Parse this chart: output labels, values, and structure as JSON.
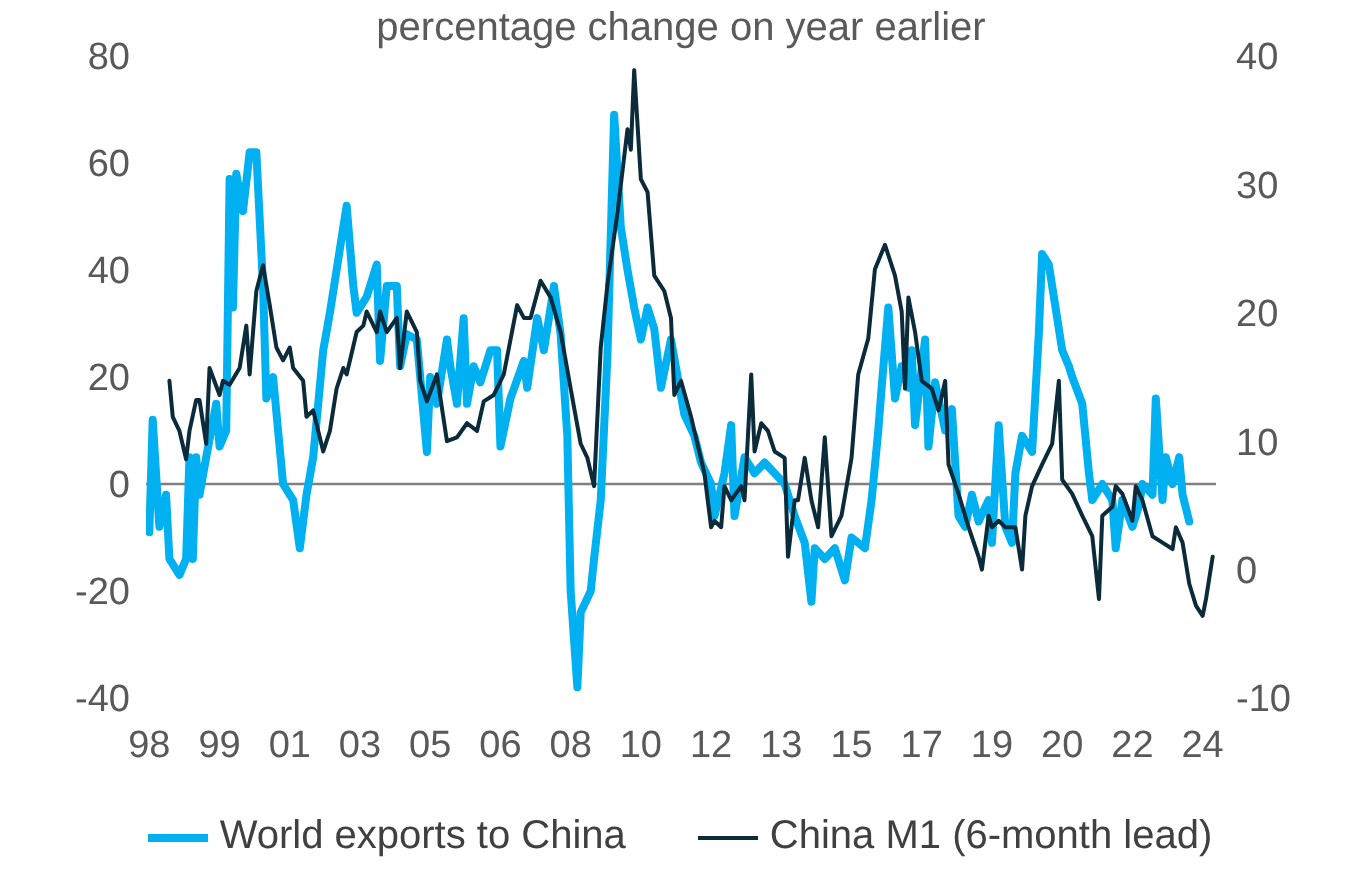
{
  "chart_data": {
    "type": "line",
    "title": "percentage change on year earlier",
    "legend": "bottom",
    "grid": false,
    "xlim": [
      "1997-12",
      "2024-08"
    ],
    "xticks": [
      {
        "value": "1998-01",
        "label": "98"
      },
      {
        "value": "1999-10",
        "label": "99"
      },
      {
        "value": "2001-07",
        "label": "01"
      },
      {
        "value": "2003-04",
        "label": "03"
      },
      {
        "value": "2005-01",
        "label": "05"
      },
      {
        "value": "2006-10",
        "label": "06"
      },
      {
        "value": "2008-07",
        "label": "08"
      },
      {
        "value": "2010-04",
        "label": "10"
      },
      {
        "value": "2012-01",
        "label": "12"
      },
      {
        "value": "2013-10",
        "label": "13"
      },
      {
        "value": "2015-07",
        "label": "15"
      },
      {
        "value": "2017-04",
        "label": "17"
      },
      {
        "value": "2019-01",
        "label": "19"
      },
      {
        "value": "2020-10",
        "label": "20"
      },
      {
        "value": "2022-07",
        "label": "22"
      },
      {
        "value": "2024-04",
        "label": "24"
      }
    ],
    "ylim": [
      -40,
      80
    ],
    "yticks": [
      -40,
      -20,
      0,
      20,
      40,
      60,
      80
    ],
    "y2lim": [
      -10,
      40
    ],
    "y2ticks": [
      -10,
      0,
      10,
      20,
      30,
      40
    ],
    "ref_lines": [
      {
        "axis": "y",
        "value": 0,
        "color": "#808080"
      }
    ],
    "series": [
      {
        "name": "World exports to China",
        "color": "#00b0f0",
        "x": [
          "1998-01",
          "1998-02",
          "1998-04",
          "1998-06",
          "1998-07",
          "1998-10",
          "1998-12",
          "1999-01",
          "1999-02",
          "1999-03",
          "1999-04",
          "1999-06",
          "1999-09",
          "1999-10",
          "1999-12",
          "2000-01",
          "2000-02",
          "2000-03",
          "2000-05",
          "2000-07",
          "2000-09",
          "2000-11",
          "2000-12",
          "2001-02",
          "2001-05",
          "2001-08",
          "2001-10",
          "2001-12",
          "2002-02",
          "2002-05",
          "2002-07",
          "2002-09",
          "2002-12",
          "2003-02",
          "2003-03",
          "2003-06",
          "2003-09",
          "2003-10",
          "2003-12",
          "2004-03",
          "2004-04",
          "2004-06",
          "2004-09",
          "2004-12",
          "2005-01",
          "2005-03",
          "2005-06",
          "2005-07",
          "2005-09",
          "2005-11",
          "2005-12",
          "2006-02",
          "2006-04",
          "2006-07",
          "2006-09",
          "2006-10",
          "2007-01",
          "2007-05",
          "2007-06",
          "2007-09",
          "2007-11",
          "2008-02",
          "2008-04",
          "2008-06",
          "2008-07",
          "2008-09",
          "2008-10",
          "2009-01",
          "2009-02",
          "2009-04",
          "2009-06",
          "2009-08",
          "2009-10",
          "2009-12",
          "2010-02",
          "2010-04",
          "2010-06",
          "2010-08",
          "2010-10",
          "2011-01",
          "2011-03",
          "2011-05",
          "2011-08",
          "2011-10",
          "2012-01",
          "2012-02",
          "2012-05",
          "2012-07",
          "2012-08",
          "2012-11",
          "2013-02",
          "2013-05",
          "2013-08",
          "2013-11",
          "2014-02",
          "2014-05",
          "2014-07",
          "2014-08",
          "2014-11",
          "2015-02",
          "2015-05",
          "2015-07",
          "2015-11",
          "2016-01",
          "2016-03",
          "2016-04",
          "2016-06",
          "2016-08",
          "2016-10",
          "2016-12",
          "2017-01",
          "2017-02",
          "2017-05",
          "2017-06",
          "2017-08",
          "2017-11",
          "2018-01",
          "2018-03",
          "2018-05",
          "2018-07",
          "2018-09",
          "2018-12",
          "2019-01",
          "2019-03",
          "2019-05",
          "2019-07",
          "2019-08",
          "2019-10",
          "2020-01",
          "2020-03",
          "2020-04",
          "2020-06",
          "2020-08",
          "2020-10",
          "2020-12",
          "2021-01",
          "2021-04",
          "2021-06",
          "2021-07",
          "2021-10",
          "2022-01",
          "2022-02",
          "2022-04",
          "2022-07",
          "2022-09",
          "2022-10",
          "2023-01",
          "2023-02",
          "2023-04",
          "2023-05",
          "2023-07",
          "2023-09",
          "2023-10",
          "2023-12"
        ],
        "values": [
          -9,
          12,
          -8,
          -2,
          -14,
          -17,
          -14,
          5,
          -14,
          5,
          -2,
          5,
          15,
          7,
          10,
          57,
          33,
          58,
          51,
          62,
          62,
          37,
          16,
          20,
          0,
          -3,
          -12,
          -2,
          5,
          25,
          32,
          40,
          52,
          37,
          32,
          35,
          41,
          23,
          37,
          37,
          22,
          28,
          27,
          6,
          20,
          15,
          27,
          22,
          15,
          31,
          15,
          22,
          19,
          25,
          25,
          7,
          16,
          23,
          18,
          31,
          25,
          37,
          28,
          9,
          -20,
          -38,
          -24,
          -20,
          -14,
          -3,
          24,
          69,
          48,
          40,
          33,
          27,
          33,
          29,
          18,
          27,
          20,
          13,
          9,
          4,
          0,
          -6,
          2,
          11,
          -6,
          5,
          2,
          4,
          2,
          0,
          -6,
          -11,
          -22,
          -12,
          -14,
          -12,
          -18,
          -10,
          -12,
          -3,
          10,
          18,
          33,
          16,
          22,
          18,
          25,
          11,
          27,
          7,
          19,
          10,
          14,
          -6,
          -8,
          -2,
          -7,
          -3,
          -11,
          11,
          -8,
          -11,
          2,
          9,
          6,
          28,
          43,
          41,
          33,
          25,
          22,
          20,
          15,
          2,
          -3,
          0,
          -3,
          -12,
          -3,
          -8,
          -4,
          0,
          -2,
          16,
          -3,
          5,
          0,
          5,
          -2,
          -7
        ]
      },
      {
        "name": "China M1 (6-month lead)",
        "color": "#0b2a3a",
        "axis": "y2",
        "x": [
          "1998-07",
          "1998-08",
          "1998-10",
          "1998-12",
          "1999-01",
          "1999-03",
          "1999-04",
          "1999-06",
          "1999-07",
          "1999-10",
          "1999-11",
          "2000-01",
          "2000-04",
          "2000-06",
          "2000-07",
          "2000-09",
          "2000-11",
          "2001-01",
          "2001-03",
          "2001-05",
          "2001-07",
          "2001-08",
          "2001-11",
          "2001-12",
          "2002-02",
          "2002-05",
          "2002-07",
          "2002-09",
          "2002-11",
          "2002-12",
          "2003-03",
          "2003-05",
          "2003-06",
          "2003-09",
          "2003-10",
          "2003-12",
          "2004-03",
          "2004-04",
          "2004-06",
          "2004-09",
          "2004-10",
          "2004-12",
          "2005-03",
          "2005-06",
          "2005-09",
          "2005-12",
          "2006-03",
          "2006-05",
          "2006-08",
          "2006-11",
          "2007-03",
          "2007-05",
          "2007-07",
          "2007-10",
          "2008-01",
          "2008-04",
          "2008-07",
          "2008-10",
          "2008-12",
          "2009-02",
          "2009-04",
          "2009-06",
          "2009-09",
          "2009-12",
          "2010-01",
          "2010-02",
          "2010-04",
          "2010-06",
          "2010-08",
          "2010-11",
          "2011-01",
          "2011-02",
          "2011-04",
          "2011-07",
          "2011-08",
          "2011-11",
          "2012-01",
          "2012-02",
          "2012-04",
          "2012-05",
          "2012-07",
          "2012-10",
          "2012-11",
          "2013-01",
          "2013-02",
          "2013-04",
          "2013-06",
          "2013-08",
          "2013-11",
          "2013-12",
          "2014-02",
          "2014-03",
          "2014-05",
          "2014-07",
          "2014-09",
          "2014-11",
          "2015-01",
          "2015-04",
          "2015-07",
          "2015-09",
          "2015-12",
          "2016-02",
          "2016-05",
          "2016-08",
          "2016-10",
          "2016-11",
          "2016-12",
          "2017-02",
          "2017-04",
          "2017-07",
          "2017-09",
          "2017-11",
          "2017-12",
          "2018-03",
          "2018-06",
          "2018-09",
          "2018-10",
          "2018-12",
          "2019-01",
          "2019-03",
          "2019-05",
          "2019-08",
          "2019-10",
          "2019-11",
          "2020-01",
          "2020-04",
          "2020-07",
          "2020-09",
          "2020-10",
          "2021-01",
          "2021-04",
          "2021-07",
          "2021-09",
          "2021-10",
          "2022-01",
          "2022-02",
          "2022-04",
          "2022-07",
          "2022-08",
          "2022-10",
          "2023-01",
          "2023-04",
          "2023-07",
          "2023-08",
          "2023-10",
          "2023-12",
          "2024-02",
          "2024-04",
          "2024-05",
          "2024-07"
        ],
        "values": [
          14.7,
          11.9,
          10.8,
          8.6,
          10.8,
          13.2,
          13.2,
          9.8,
          15.7,
          13.6,
          14.7,
          14.4,
          15.7,
          19.0,
          15.2,
          21.7,
          23.7,
          20.6,
          17.3,
          16.3,
          17.3,
          15.7,
          14.7,
          11.9,
          12.4,
          9.2,
          10.8,
          14.1,
          15.7,
          15.2,
          18.5,
          19.0,
          20.1,
          18.5,
          20.1,
          18.5,
          19.6,
          15.7,
          20.1,
          18.5,
          14.7,
          13.1,
          15.2,
          10.0,
          10.3,
          11.4,
          10.8,
          13.1,
          13.6,
          15.2,
          20.6,
          19.6,
          19.6,
          22.5,
          21.2,
          18.5,
          14.1,
          9.8,
          8.7,
          6.5,
          17.3,
          22.2,
          27.8,
          34.3,
          32.7,
          38.9,
          30.4,
          29.4,
          22.9,
          21.7,
          19.6,
          13.6,
          14.7,
          11.9,
          10.8,
          7.5,
          3.3,
          3.8,
          3.3,
          6.5,
          5.4,
          6.5,
          5.4,
          15.2,
          9.2,
          11.4,
          10.8,
          9.2,
          8.7,
          1.0,
          5.4,
          5.4,
          8.7,
          5.4,
          3.3,
          10.3,
          2.6,
          4.2,
          8.7,
          15.2,
          18.0,
          23.4,
          25.3,
          22.9,
          20.1,
          14.1,
          21.2,
          18.5,
          14.7,
          14.1,
          12.4,
          14.7,
          8.2,
          5.9,
          3.3,
          1.0,
          0,
          4.2,
          3.3,
          3.8,
          3.3,
          3.3,
          0,
          4.2,
          6.5,
          8.2,
          9.8,
          14.7,
          7.0,
          5.9,
          4.2,
          2.6,
          -2.3,
          4.2,
          4.9,
          6.5,
          5.9,
          3.8,
          6.5,
          5.4,
          2.6,
          2.1,
          1.6,
          3.3,
          2.1,
          -1.1,
          -2.8,
          -3.6,
          -2.3,
          1.0
        ]
      }
    ]
  }
}
